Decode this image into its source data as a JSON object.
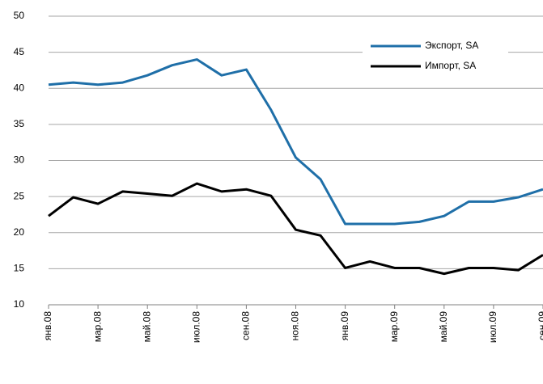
{
  "chart_data": {
    "type": "line",
    "categories": [
      "янв.08",
      null,
      "мар.08",
      null,
      "май.08",
      null,
      "июл.08",
      null,
      "сен.08",
      null,
      "ноя.08",
      null,
      "янв.09",
      null,
      "мар.09",
      null,
      "май.09",
      null,
      "июл.09",
      null,
      "сен.09"
    ],
    "series": [
      {
        "name": "Экспорт, SA",
        "color": "#1f6fa8",
        "values": [
          40.5,
          40.8,
          40.5,
          40.8,
          41.8,
          43.2,
          44.0,
          41.8,
          42.6,
          37.0,
          30.4,
          27.4,
          21.2,
          21.2,
          21.2,
          21.5,
          22.3,
          24.3,
          24.3,
          24.9,
          26.0
        ]
      },
      {
        "name": "Импорт, SA",
        "color": "#000000",
        "values": [
          22.3,
          24.9,
          24.0,
          25.7,
          25.4,
          25.1,
          26.8,
          25.7,
          26.0,
          25.1,
          20.4,
          19.6,
          15.1,
          16.0,
          15.1,
          15.1,
          14.3,
          15.1,
          15.1,
          14.8,
          16.9
        ]
      }
    ],
    "ylim": [
      10,
      50
    ],
    "yticks": [
      10,
      15,
      20,
      25,
      30,
      35,
      40,
      45,
      50
    ],
    "grid": true,
    "legend": "top-right"
  }
}
